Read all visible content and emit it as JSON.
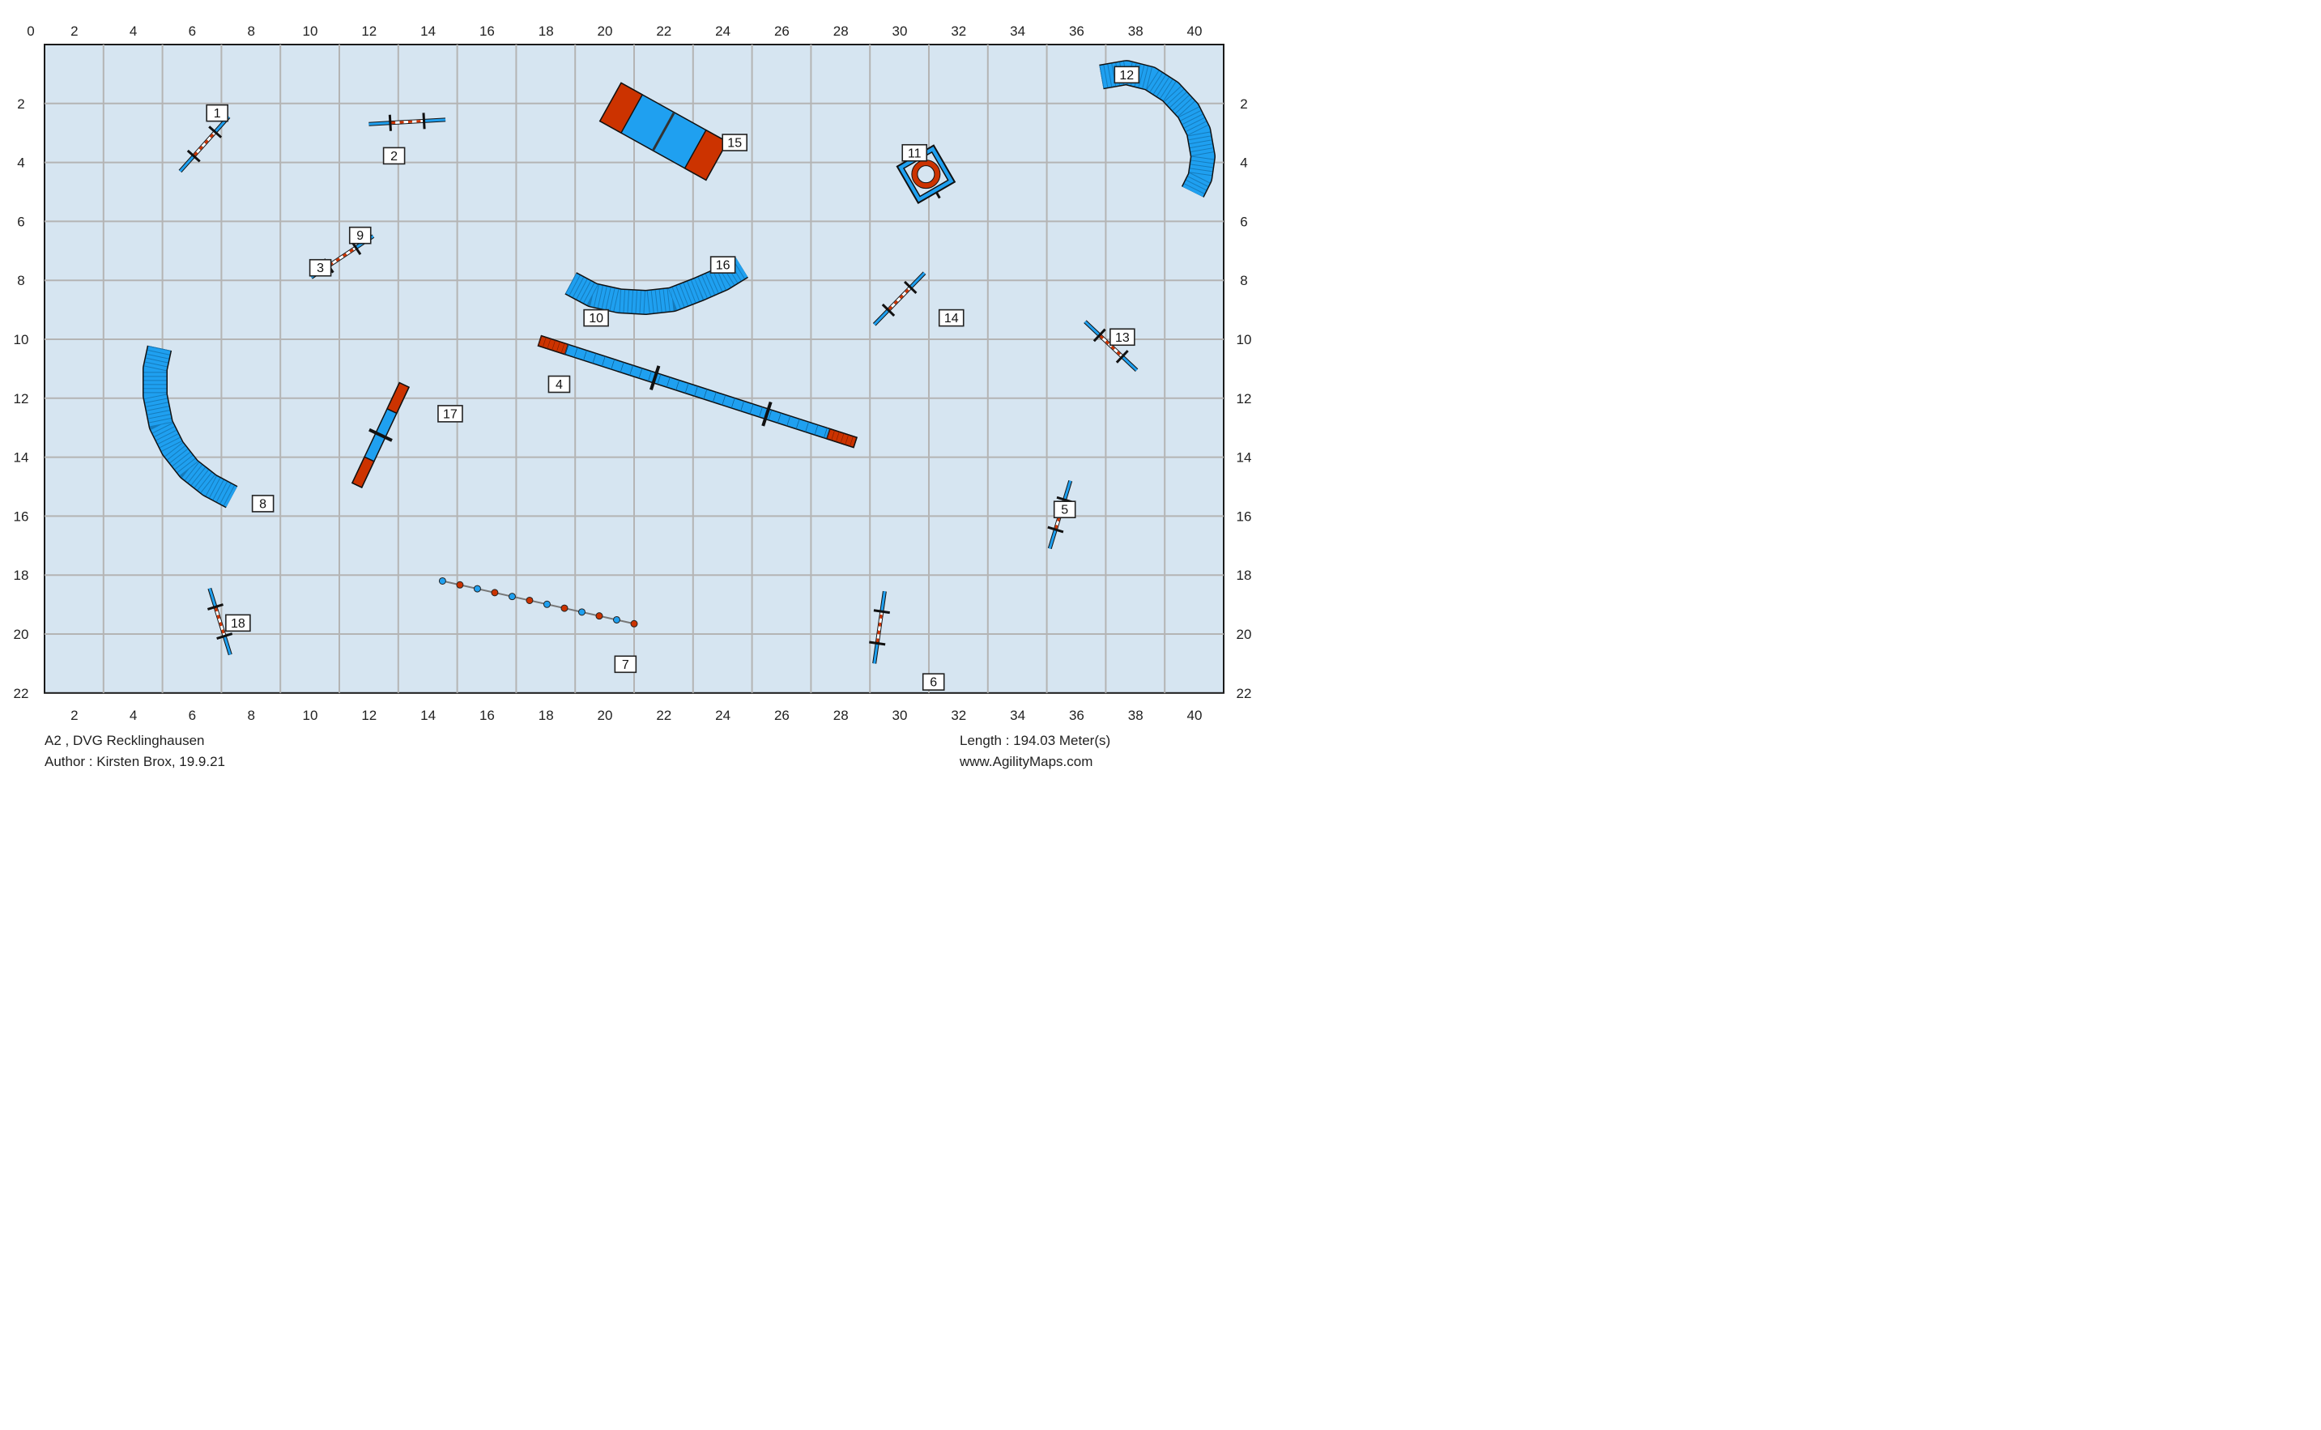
{
  "course": {
    "title": "A2 , DVG Recklinghausen",
    "author": "Author : Kirsten Brox, 19.9.21",
    "length": "Length : 194.03 Meter(s)",
    "website": "www.AgilityMaps.com"
  },
  "field": {
    "width_m": 40,
    "height_m": 22,
    "top_tick_labels": [
      "0",
      "2",
      "4",
      "6",
      "8",
      "10",
      "12",
      "14",
      "16",
      "18",
      "20",
      "22",
      "24",
      "26",
      "28",
      "30",
      "32",
      "34",
      "36",
      "38",
      "40"
    ],
    "bottom_tick_labels": [
      "2",
      "4",
      "6",
      "8",
      "10",
      "12",
      "14",
      "16",
      "18",
      "20",
      "22",
      "24",
      "26",
      "28",
      "30",
      "32",
      "34",
      "36",
      "38",
      "40"
    ],
    "side_tick_labels": [
      "2",
      "4",
      "6",
      "8",
      "10",
      "12",
      "14",
      "16",
      "18",
      "20",
      "22"
    ],
    "colors": {
      "field": "#d6e5f1",
      "grid": "#b4b4b4",
      "equipment_blue": "#1fa0f0",
      "contact_red": "#cc3300",
      "outline": "#1a1a1a"
    }
  },
  "obstacles": [
    {
      "number": "1",
      "type": "jump"
    },
    {
      "number": "2",
      "type": "jump"
    },
    {
      "number": "3",
      "type": "jump"
    },
    {
      "number": "4",
      "type": "dog-walk"
    },
    {
      "number": "5",
      "type": "jump"
    },
    {
      "number": "6",
      "type": "jump"
    },
    {
      "number": "7",
      "type": "weave-poles"
    },
    {
      "number": "8",
      "type": "tunnel"
    },
    {
      "number": "9",
      "type": "jump"
    },
    {
      "number": "10",
      "type": "tunnel"
    },
    {
      "number": "11",
      "type": "tire"
    },
    {
      "number": "12",
      "type": "tunnel"
    },
    {
      "number": "13",
      "type": "jump"
    },
    {
      "number": "14",
      "type": "jump"
    },
    {
      "number": "15",
      "type": "a-frame"
    },
    {
      "number": "16",
      "type": "tunnel"
    },
    {
      "number": "17",
      "type": "seesaw"
    },
    {
      "number": "18",
      "type": "jump"
    }
  ]
}
